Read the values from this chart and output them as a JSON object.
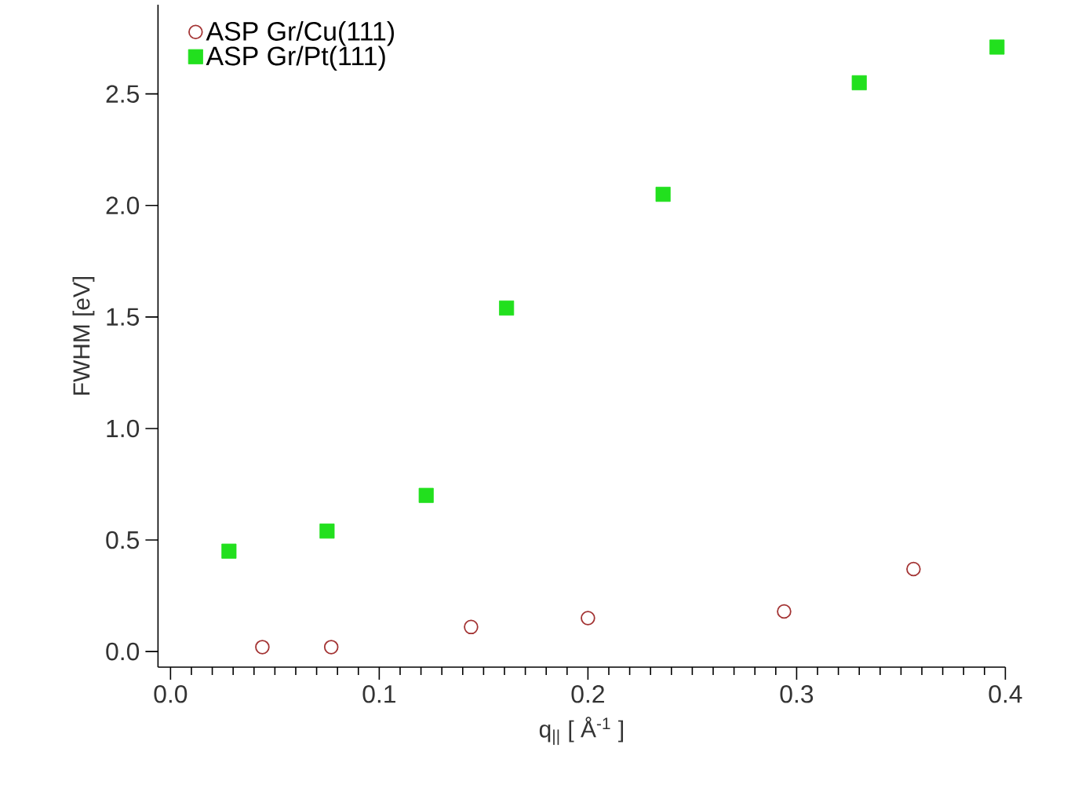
{
  "chart_data": {
    "type": "scatter",
    "xlabel": "q$_{||}$ [ Å$^{-1}$ ]",
    "ylabel": "FWHM [eV]",
    "xlim": [
      -0.006,
      0.4
    ],
    "ylim": [
      -0.07,
      2.9
    ],
    "xticks": [
      {
        "value": 0,
        "label": "0.0"
      },
      0.1,
      0.2,
      0.3,
      0.4
    ],
    "yticks": [
      {
        "value": 0,
        "label": "0.0"
      },
      0.5,
      {
        "value": 1,
        "label": "1.0"
      },
      1.5,
      {
        "value": 2,
        "label": "2.0"
      },
      2.5
    ],
    "legend": "top left",
    "series": [
      {
        "name": "ASP Gr/Cu(111)",
        "color": "#a33333",
        "marker": "circle",
        "x": [
          0.044,
          0.077,
          0.144,
          0.2,
          0.294,
          0.356
        ],
        "values": [
          0.02,
          0.02,
          0.11,
          0.15,
          0.18,
          0.37
        ]
      },
      {
        "name": "ASP Gr/Pt(111)",
        "color": "#22e01e",
        "marker": "square",
        "x": [
          0.028,
          0.075,
          0.1225,
          0.161,
          0.236,
          0.33,
          0.396
        ],
        "values": [
          0.45,
          0.54,
          0.7,
          1.54,
          2.05,
          2.55,
          2.71
        ]
      }
    ]
  }
}
